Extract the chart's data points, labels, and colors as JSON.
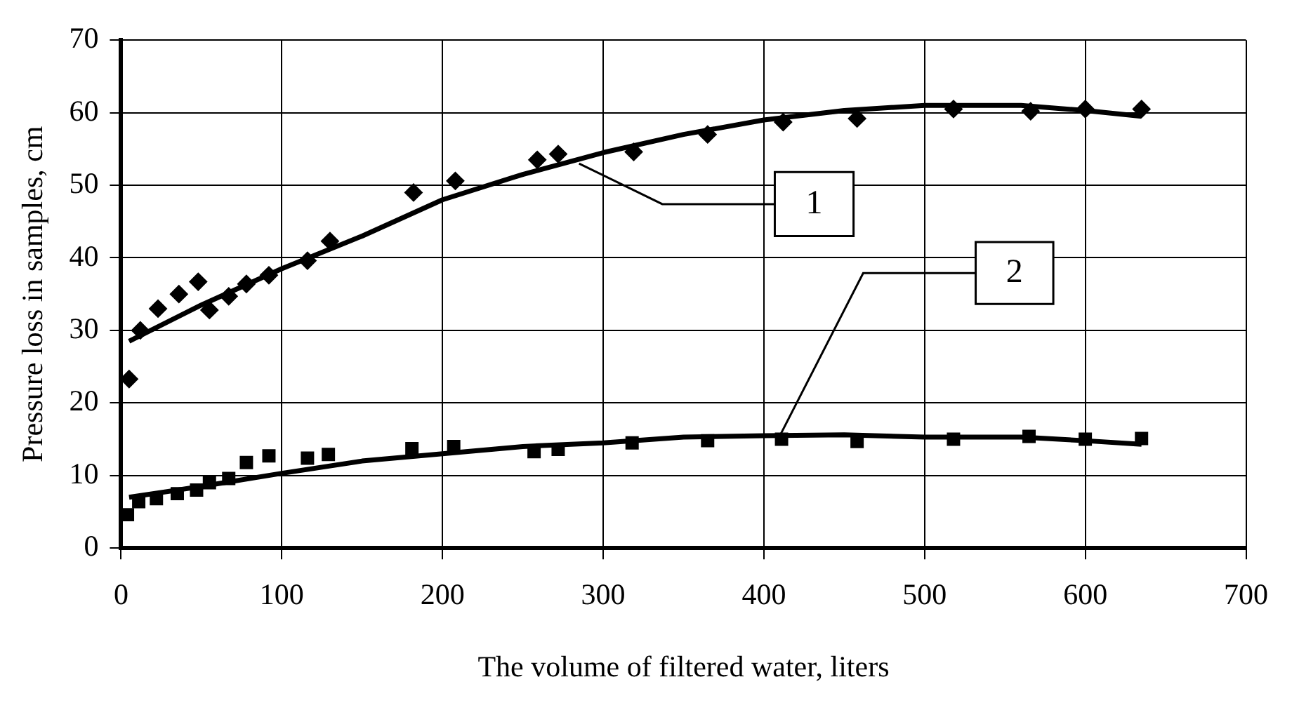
{
  "chart_data": {
    "type": "scatter",
    "xlabel": "The volume of filtered water, liters",
    "ylabel": "Pressure loss in samples, cm",
    "xlim": [
      0,
      700
    ],
    "xticks": [
      0,
      100,
      200,
      300,
      400,
      500,
      600,
      700
    ],
    "ylim": [
      0,
      70
    ],
    "yticks": [
      0,
      10,
      20,
      30,
      40,
      50,
      60,
      70
    ],
    "grid": true,
    "legend": false,
    "series": [
      {
        "type": "scatter",
        "marker": "diamond",
        "color": "#000000",
        "x": [
          5,
          12,
          23,
          36,
          48,
          55,
          67,
          78,
          92,
          116,
          130,
          182,
          208,
          259,
          272,
          319,
          365,
          412,
          458,
          518,
          566,
          600,
          635
        ],
        "values": [
          23.3,
          30,
          33,
          35,
          36.7,
          32.8,
          34.7,
          36.4,
          37.6,
          39.6,
          42.3,
          49,
          50.6,
          53.5,
          54.3,
          54.6,
          57,
          58.7,
          59.2,
          60.5,
          60.2,
          60.5,
          60.5
        ]
      },
      {
        "type": "scatter",
        "marker": "square",
        "color": "#000000",
        "x": [
          4,
          11,
          22,
          35,
          47,
          55,
          67,
          78,
          92,
          116,
          129,
          181,
          207,
          257,
          272,
          318,
          365,
          411,
          458,
          518,
          565,
          600,
          635
        ],
        "values": [
          4.6,
          6.4,
          6.8,
          7.5,
          8,
          9,
          9.6,
          11.8,
          12.7,
          12.4,
          12.9,
          13.7,
          14,
          13.3,
          13.6,
          14.5,
          14.8,
          15,
          14.7,
          15,
          15.4,
          15,
          15.1
        ]
      },
      {
        "type": "line",
        "marker": "none",
        "line_style": "solid",
        "color": "#000000",
        "x": [
          5,
          50,
          100,
          150,
          200,
          250,
          300,
          350,
          400,
          450,
          500,
          560,
          600,
          635
        ],
        "values": [
          28.5,
          33.5,
          38.5,
          43,
          48,
          51.5,
          54.5,
          57,
          59,
          60.3,
          61,
          61,
          60.3,
          59.5
        ]
      },
      {
        "type": "line",
        "marker": "none",
        "line_style": "solid",
        "color": "#000000",
        "x": [
          5,
          50,
          100,
          150,
          200,
          250,
          300,
          350,
          400,
          450,
          500,
          560,
          600,
          635
        ],
        "values": [
          7,
          8.5,
          10.3,
          12,
          13,
          14,
          14.5,
          15.3,
          15.5,
          15.6,
          15.3,
          15.3,
          14.8,
          14.3
        ]
      }
    ],
    "annotations": [
      {
        "text": "1",
        "x": 285,
        "y": 53
      },
      {
        "text": "2",
        "x": 410,
        "y": 15.5
      }
    ]
  }
}
